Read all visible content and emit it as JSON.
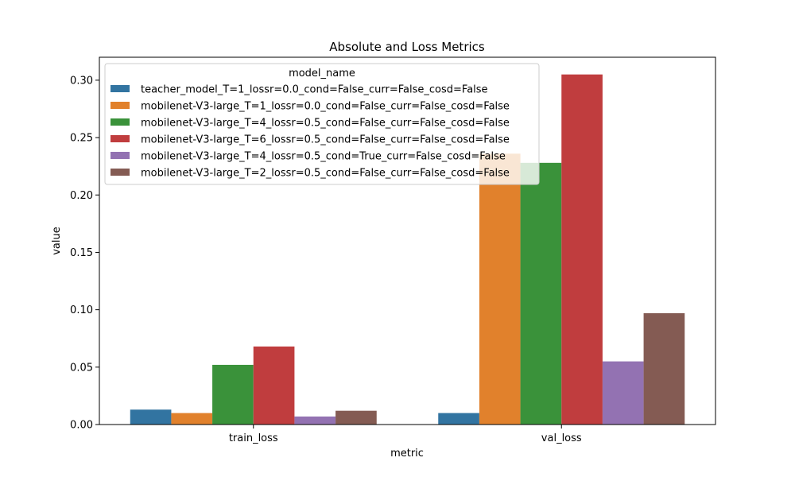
{
  "chart_data": {
    "type": "bar",
    "title": "Absolute and Loss Metrics",
    "xlabel": "metric",
    "ylabel": "value",
    "categories": [
      "train_loss",
      "val_loss"
    ],
    "ylim": [
      0,
      0.32
    ],
    "yticks": [
      "0.00",
      "0.05",
      "0.10",
      "0.15",
      "0.20",
      "0.25",
      "0.30"
    ],
    "legend_title": "model_name",
    "legend_position": "upper-left",
    "grid": false,
    "series": [
      {
        "name": "teacher_model_T=1_lossr=0.0_cond=False_curr=False_cosd=False",
        "color": "#3274a1",
        "values": [
          0.013,
          0.01
        ]
      },
      {
        "name": "mobilenet-V3-large_T=1_lossr=0.0_cond=False_curr=False_cosd=False",
        "color": "#e1812c",
        "values": [
          0.01,
          0.236
        ]
      },
      {
        "name": "mobilenet-V3-large_T=4_lossr=0.5_cond=False_curr=False_cosd=False",
        "color": "#3a923a",
        "values": [
          0.052,
          0.228
        ]
      },
      {
        "name": "mobilenet-V3-large_T=6_lossr=0.5_cond=False_curr=False_cosd=False",
        "color": "#c03d3e",
        "values": [
          0.068,
          0.305
        ]
      },
      {
        "name": "mobilenet-V3-large_T=4_lossr=0.5_cond=True_curr=False_cosd=False",
        "color": "#9372b2",
        "values": [
          0.007,
          0.055
        ]
      },
      {
        "name": "mobilenet-V3-large_T=2_lossr=0.5_cond=False_curr=False_cosd=False",
        "color": "#845b53",
        "values": [
          0.012,
          0.097
        ]
      }
    ]
  }
}
